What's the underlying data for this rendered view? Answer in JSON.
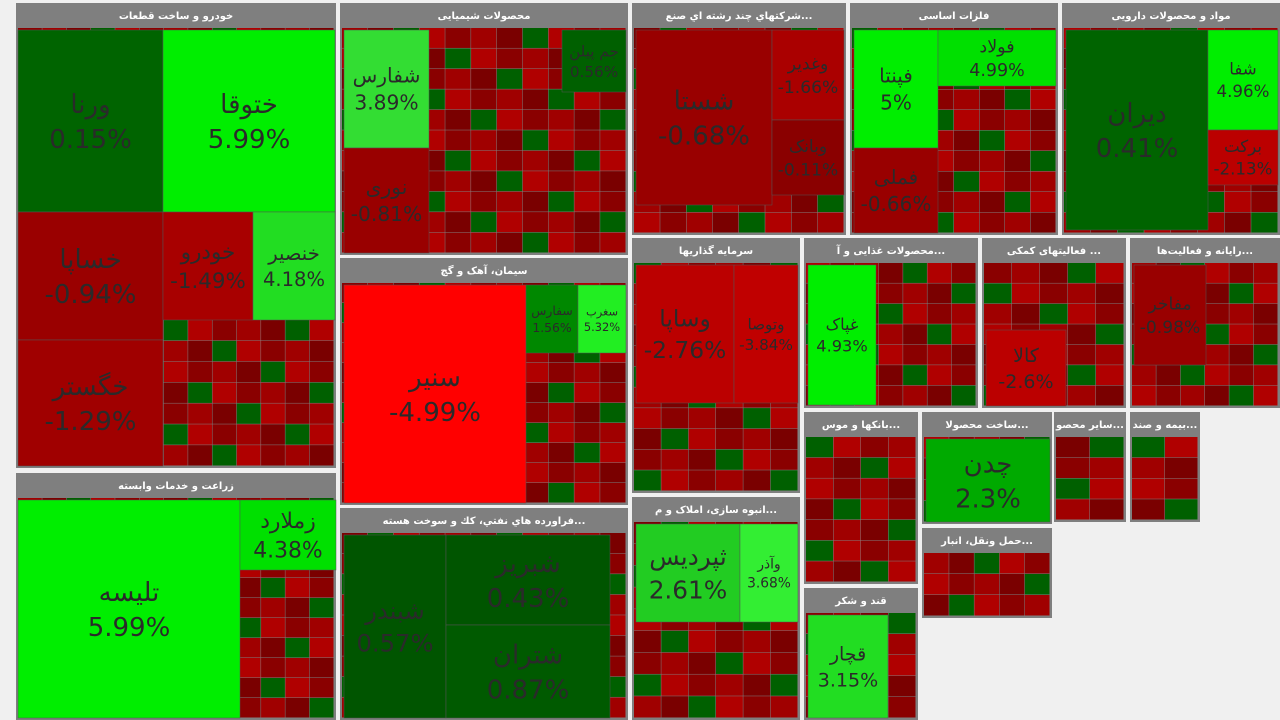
{
  "chart_data": {
    "type": "treemap",
    "sectors": [
      {
        "name": "خودرو و ساخت قطعات",
        "tiles": [
          "ورنا",
          "ختوقا",
          "خساپا",
          "خودرو",
          "خنصیر",
          "خگستر"
        ],
        "values": [
          0.15,
          5.99,
          -0.94,
          -1.49,
          4.18,
          -1.29
        ],
        "value_labels": [
          "0.15%",
          "5.99%",
          "-0.94%",
          "-1.49%",
          "4.18%",
          "-1.29%"
        ],
        "colors": [
          "#006400",
          "#00ee00",
          "#9a0000",
          "#a80000",
          "#22dd22",
          "#a00000"
        ]
      },
      {
        "name": "محصولات شیمیایی",
        "tiles": [
          "شفارس",
          "نوری",
          "جم پیلن"
        ],
        "values": [
          3.89,
          -0.81,
          0.56
        ],
        "value_labels": [
          "3.89%",
          "-0.81%",
          "0.56%"
        ],
        "colors": [
          "#33dd33",
          "#990000",
          "#006000"
        ]
      },
      {
        "name": "...شرکتهاي چند رشته اي صنع",
        "tiles": [
          "شستا",
          "وغدیر",
          "وبانک"
        ],
        "values": [
          -0.68,
          -1.66,
          -0.11
        ],
        "value_labels": [
          "-0.68%",
          "-1.66%",
          "-0.11%"
        ],
        "colors": [
          "#990000",
          "#aa0000",
          "#8a0000"
        ]
      },
      {
        "name": "فلزات اساسی",
        "tiles": [
          "فپنتا",
          "فولاد",
          "فملی"
        ],
        "values": [
          5,
          4.99,
          -0.66
        ],
        "value_labels": [
          "5%",
          "4.99%",
          "-0.66%"
        ],
        "colors": [
          "#00ee00",
          "#00e000",
          "#990000"
        ]
      },
      {
        "name": "مواد و محصولات دارویی",
        "tiles": [
          "دیران",
          "شفا",
          "برکت"
        ],
        "values": [
          0.41,
          4.96,
          -2.13
        ],
        "value_labels": [
          "0.41%",
          "4.96%",
          "-2.13%"
        ],
        "colors": [
          "#006400",
          "#00ee00",
          "#bb0000"
        ]
      },
      {
        "name": "سیمان، آهک و گچ",
        "tiles": [
          "سنیر",
          "سفارس",
          "سغرب"
        ],
        "values": [
          -4.99,
          1.56,
          5.32
        ],
        "value_labels": [
          "-4.99%",
          "1.56%",
          "5.32%"
        ],
        "colors": [
          "#ff0000",
          "#008800",
          "#22ee22"
        ]
      },
      {
        "name": "زراعت و خدمات وابسته",
        "tiles": [
          "تلیسه",
          "زملارد"
        ],
        "values": [
          5.99,
          4.38
        ],
        "value_labels": [
          "5.99%",
          "4.38%"
        ],
        "colors": [
          "#00ee00",
          "#00e000"
        ]
      },
      {
        "name": "...فراورده هاي نفتي، كك و سوخت هسته",
        "tiles": [
          "شبندر",
          "شبریز",
          "شتران"
        ],
        "values": [
          0.57,
          0.43,
          0.87
        ],
        "value_labels": [
          "0.57%",
          "0.43%",
          "0.87%"
        ],
        "colors": [
          "#005500",
          "#005500",
          "#005a00"
        ]
      },
      {
        "name": "سرمایه گذاریها",
        "tiles": [
          "وساپا",
          "وتوصا"
        ],
        "values": [
          -2.76,
          -3.84
        ],
        "value_labels": [
          "-2.76%",
          "-3.84%"
        ],
        "colors": [
          "#bb0000",
          "#c00000"
        ]
      },
      {
        "name": "...محصولات غذایی و آ",
        "tiles": [
          "غپاک"
        ],
        "values": [
          4.93
        ],
        "value_labels": [
          "4.93%"
        ],
        "colors": [
          "#00ee00"
        ]
      },
      {
        "name": "... فعالیتهای کمکی",
        "tiles": [
          "کالا"
        ],
        "values": [
          -2.6
        ],
        "value_labels": [
          "-2.6%"
        ],
        "colors": [
          "#bb0000"
        ]
      },
      {
        "name": "...رایانه و فعالیت‌ها",
        "tiles": [
          "مفاخر"
        ],
        "values": [
          -0.98
        ],
        "value_labels": [
          "-0.98%"
        ],
        "colors": [
          "#990000"
        ]
      },
      {
        "name": "...انبوه سازی، املاک و م",
        "tiles": [
          "ثپردیس",
          "وآذر"
        ],
        "values": [
          2.61,
          3.68
        ],
        "value_labels": [
          "2.61%",
          "3.68%"
        ],
        "colors": [
          "#22cc22",
          "#33ee33"
        ]
      },
      {
        "name": "...بانکها و موس",
        "tiles": [],
        "values": [],
        "value_labels": [],
        "colors": []
      },
      {
        "name": "...ساخت محصولا",
        "tiles": [
          "چدن"
        ],
        "values": [
          2.3
        ],
        "value_labels": [
          "2.3%"
        ],
        "colors": [
          "#00aa00"
        ]
      },
      {
        "name": "قند و شکر",
        "tiles": [
          "قچار"
        ],
        "values": [
          3.15
        ],
        "value_labels": [
          "3.15%"
        ],
        "colors": [
          "#22dd22"
        ]
      },
      {
        "name": "...حمل ونقل، انبار",
        "tiles": [],
        "values": [],
        "value_labels": [],
        "colors": []
      },
      {
        "name": "...سایر محصو",
        "tiles": [],
        "values": [],
        "value_labels": [],
        "colors": []
      },
      {
        "name": "...بیمه و صند",
        "tiles": [],
        "values": [],
        "value_labels": [],
        "colors": []
      }
    ]
  }
}
